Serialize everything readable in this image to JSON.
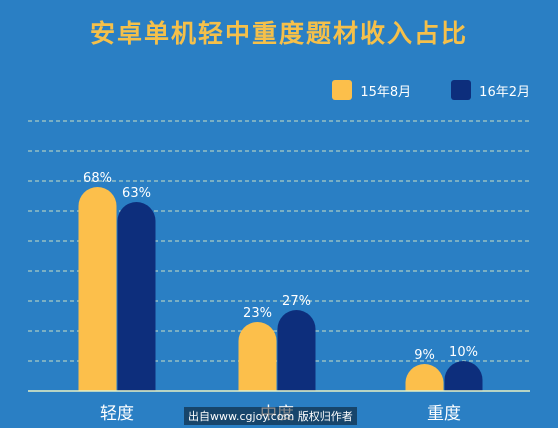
{
  "chart_data": {
    "type": "bar",
    "title": "安卓单机轻中重度题材收入占比",
    "categories": [
      "轻度",
      "中度",
      "重度"
    ],
    "series": [
      {
        "name": "15年8月",
        "values": [
          68,
          23,
          9
        ],
        "color": "#fcbf4b"
      },
      {
        "name": "16年2月",
        "values": [
          63,
          27,
          10
        ],
        "color": "#0d2e7c"
      }
    ],
    "value_suffix": "%",
    "ylim": [
      0,
      100
    ],
    "grid": true,
    "legend_position": "top-right"
  },
  "watermark": "出自www.cgjoy.com 版权归作者"
}
